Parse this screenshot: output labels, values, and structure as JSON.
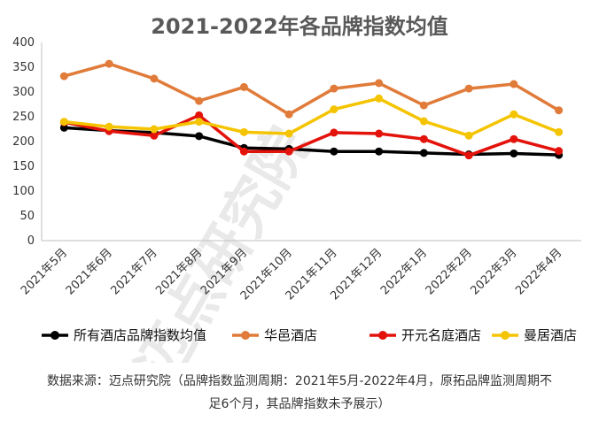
{
  "chart_data": {
    "type": "line",
    "title": "2021-2022年各品牌指数均值",
    "categories": [
      "2021年5月",
      "2021年6月",
      "2021年7月",
      "2021年8月",
      "2021年9月",
      "2021年10月",
      "2021年11月",
      "2021年12月",
      "2022年1月",
      "2022年2月",
      "2022年3月",
      "2022年4月"
    ],
    "yticks": [
      "0",
      "50",
      "100",
      "150",
      "200",
      "250",
      "300",
      "350",
      "400"
    ],
    "ylim": [
      0,
      400
    ],
    "grid": false,
    "legend_position": "bottom",
    "series": [
      {
        "name": "所有酒店品牌指数均值",
        "color": "#000000",
        "values": [
          228,
          222,
          218,
          211,
          187,
          185,
          180,
          180,
          177,
          174,
          176,
          173
        ]
      },
      {
        "name": "华邑酒店",
        "color": "#e07b39",
        "values": [
          332,
          357,
          327,
          282,
          310,
          255,
          307,
          318,
          273,
          307,
          316,
          263
        ]
      },
      {
        "name": "开元名庭酒店",
        "color": "#e3120b",
        "values": [
          239,
          221,
          212,
          253,
          180,
          180,
          218,
          216,
          205,
          172,
          205,
          181
        ]
      },
      {
        "name": "曼居酒店",
        "color": "#f5c400",
        "values": [
          240,
          230,
          225,
          240,
          219,
          216,
          265,
          287,
          241,
          212,
          255,
          219
        ]
      }
    ]
  },
  "watermark": "迈点研究院",
  "caption": {
    "line1": "数据来源：迈点研究院（品牌指数监测周期：2021年5月-2022年4月，原拓品牌监测周期不",
    "line2": "足6个月，其品牌指数未予展示）"
  }
}
